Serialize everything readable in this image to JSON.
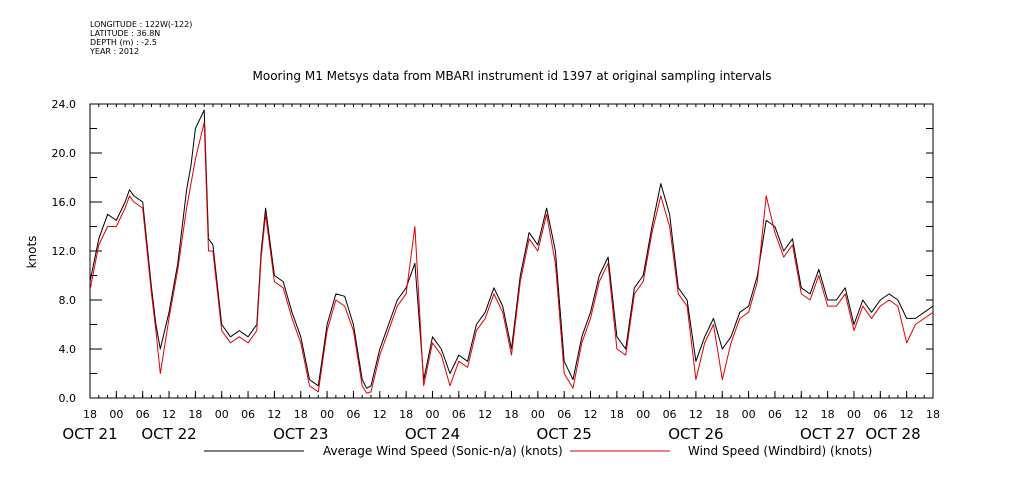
{
  "header": {
    "longitude": "LONGITUDE : 122W(-122)",
    "latitude": "LATITUDE : 36.8N",
    "depth": "DEPTH (m) : -2.5",
    "year": "YEAR : 2012"
  },
  "chart_data": {
    "type": "line",
    "title": "Mooring M1 Metsys data from MBARI instrument id 1397 at original sampling intervals",
    "ylabel": "knots",
    "xlabel": "",
    "ylim": [
      0,
      24
    ],
    "yticks": [
      "0.0",
      "4.0",
      "8.0",
      "12.0",
      "16.0",
      "20.0",
      "24.0"
    ],
    "x_unit": "hours since 2012-10-20 18:00",
    "xlim": [
      0,
      192
    ],
    "xtick_labels": [
      {
        "x": 0,
        "label": "18"
      },
      {
        "x": 6,
        "label": "00"
      },
      {
        "x": 12,
        "label": "06"
      },
      {
        "x": 18,
        "label": "12"
      },
      {
        "x": 24,
        "label": "18"
      },
      {
        "x": 30,
        "label": "00"
      },
      {
        "x": 36,
        "label": "06"
      },
      {
        "x": 42,
        "label": "12"
      },
      {
        "x": 48,
        "label": "18"
      },
      {
        "x": 54,
        "label": "00"
      },
      {
        "x": 60,
        "label": "06"
      },
      {
        "x": 66,
        "label": "12"
      },
      {
        "x": 72,
        "label": "18"
      },
      {
        "x": 78,
        "label": "00"
      },
      {
        "x": 84,
        "label": "06"
      },
      {
        "x": 90,
        "label": "12"
      },
      {
        "x": 96,
        "label": "18"
      },
      {
        "x": 102,
        "label": "00"
      },
      {
        "x": 108,
        "label": "06"
      },
      {
        "x": 114,
        "label": "12"
      },
      {
        "x": 120,
        "label": "18"
      },
      {
        "x": 126,
        "label": "00"
      },
      {
        "x": 132,
        "label": "06"
      },
      {
        "x": 138,
        "label": "12"
      },
      {
        "x": 144,
        "label": "18"
      },
      {
        "x": 150,
        "label": "00"
      },
      {
        "x": 156,
        "label": "06"
      },
      {
        "x": 162,
        "label": "12"
      },
      {
        "x": 168,
        "label": "18"
      },
      {
        "x": 174,
        "label": "00"
      },
      {
        "x": 180,
        "label": "06"
      },
      {
        "x": 186,
        "label": "12"
      },
      {
        "x": 192,
        "label": "18"
      }
    ],
    "date_labels": [
      {
        "x": 0,
        "label": "OCT 21"
      },
      {
        "x": 18,
        "label": "OCT 22"
      },
      {
        "x": 48,
        "label": "OCT 23"
      },
      {
        "x": 78,
        "label": "OCT 24"
      },
      {
        "x": 108,
        "label": "OCT 25"
      },
      {
        "x": 138,
        "label": "OCT 26"
      },
      {
        "x": 168,
        "label": "OCT 27"
      },
      {
        "x": 196,
        "label": "OCT 28"
      }
    ],
    "series": [
      {
        "name": "Average Wind Speed (Sonic-n/a) (knots)",
        "color": "#000000",
        "x": [
          0,
          2,
          4,
          6,
          8,
          9,
          10,
          12,
          14,
          15,
          16,
          18,
          20,
          22,
          23,
          24,
          26,
          27,
          28,
          30,
          32,
          34,
          36,
          38,
          39,
          40,
          42,
          44,
          46,
          48,
          50,
          52,
          54,
          56,
          58,
          60,
          62,
          63,
          64,
          66,
          68,
          70,
          72,
          74,
          76,
          78,
          80,
          82,
          84,
          86,
          88,
          90,
          92,
          94,
          96,
          98,
          100,
          102,
          104,
          106,
          108,
          110,
          112,
          114,
          116,
          118,
          120,
          122,
          124,
          126,
          128,
          130,
          132,
          134,
          136,
          138,
          140,
          142,
          144,
          146,
          148,
          150,
          152,
          154,
          156,
          158,
          160,
          162,
          164,
          166,
          168,
          170,
          172,
          174,
          176,
          178,
          180,
          182,
          184,
          186,
          188,
          190,
          192
        ],
        "values": [
          9.5,
          13.0,
          15.0,
          14.5,
          16.0,
          17.0,
          16.5,
          16.0,
          9.0,
          6.0,
          4.0,
          7.0,
          11.0,
          17.0,
          19.0,
          22.0,
          23.5,
          13.0,
          12.5,
          6.0,
          5.0,
          5.5,
          5.0,
          6.0,
          12.0,
          15.5,
          10.0,
          9.5,
          7.0,
          5.0,
          1.5,
          1.0,
          6.0,
          8.5,
          8.3,
          6.0,
          1.5,
          0.8,
          1.0,
          4.0,
          6.0,
          8.0,
          9.0,
          11.0,
          1.5,
          5.0,
          4.0,
          2.0,
          3.5,
          3.0,
          6.0,
          7.0,
          9.0,
          7.5,
          4.0,
          10.0,
          13.5,
          12.5,
          15.5,
          12.0,
          3.0,
          1.5,
          5.0,
          7.0,
          10.0,
          11.5,
          5.0,
          4.0,
          9.0,
          10.0,
          14.0,
          17.5,
          15.0,
          9.0,
          8.0,
          3.0,
          5.0,
          6.5,
          4.0,
          5.0,
          7.0,
          7.5,
          10.0,
          14.5,
          14.0,
          12.0,
          13.0,
          9.0,
          8.5,
          10.5,
          8.0,
          8.0,
          9.0,
          6.0,
          8.0,
          7.0,
          8.0,
          8.5,
          8.0,
          6.5,
          6.5,
          7.0,
          7.5
        ]
      },
      {
        "name": "Wind Speed (Windbird) (knots)",
        "color": "#e00000",
        "x": [
          0,
          2,
          4,
          6,
          8,
          9,
          10,
          12,
          14,
          15,
          16,
          18,
          20,
          22,
          23,
          24,
          26,
          27,
          28,
          30,
          32,
          34,
          36,
          38,
          39,
          40,
          42,
          44,
          46,
          48,
          50,
          52,
          54,
          56,
          58,
          60,
          62,
          63,
          64,
          66,
          68,
          70,
          72,
          74,
          76,
          78,
          80,
          82,
          84,
          86,
          88,
          90,
          92,
          94,
          96,
          98,
          100,
          102,
          104,
          106,
          108,
          110,
          112,
          114,
          116,
          118,
          120,
          122,
          124,
          126,
          128,
          130,
          132,
          134,
          136,
          138,
          140,
          142,
          144,
          146,
          148,
          150,
          152,
          154,
          156,
          158,
          160,
          162,
          164,
          166,
          168,
          170,
          172,
          174,
          176,
          178,
          180,
          182,
          184,
          186,
          188,
          190,
          192
        ],
        "values": [
          8.8,
          12.5,
          14.0,
          14.0,
          15.5,
          16.5,
          16.0,
          15.5,
          8.5,
          5.5,
          2.0,
          6.5,
          10.5,
          15.5,
          17.5,
          19.5,
          22.5,
          12.0,
          12.0,
          5.5,
          4.5,
          5.0,
          4.5,
          5.5,
          11.5,
          15.0,
          9.5,
          9.0,
          6.5,
          4.5,
          1.0,
          0.5,
          5.5,
          8.0,
          7.5,
          5.5,
          1.0,
          0.4,
          0.5,
          3.5,
          5.5,
          7.5,
          8.5,
          14.0,
          1.0,
          4.5,
          3.5,
          1.0,
          3.0,
          2.5,
          5.5,
          6.5,
          8.5,
          7.0,
          3.5,
          9.5,
          13.0,
          12.0,
          15.0,
          11.0,
          2.0,
          0.8,
          4.5,
          6.5,
          9.5,
          11.0,
          4.0,
          3.5,
          8.5,
          9.5,
          13.5,
          16.5,
          14.0,
          8.5,
          7.5,
          1.5,
          4.5,
          6.0,
          1.5,
          4.5,
          6.5,
          7.0,
          9.5,
          16.5,
          13.5,
          11.5,
          12.5,
          8.5,
          8.0,
          10.0,
          7.5,
          7.5,
          8.5,
          5.5,
          7.5,
          6.5,
          7.5,
          8.0,
          7.5,
          4.5,
          6.0,
          6.5,
          7.0
        ]
      }
    ],
    "legend": {
      "placement": "bottom"
    }
  }
}
